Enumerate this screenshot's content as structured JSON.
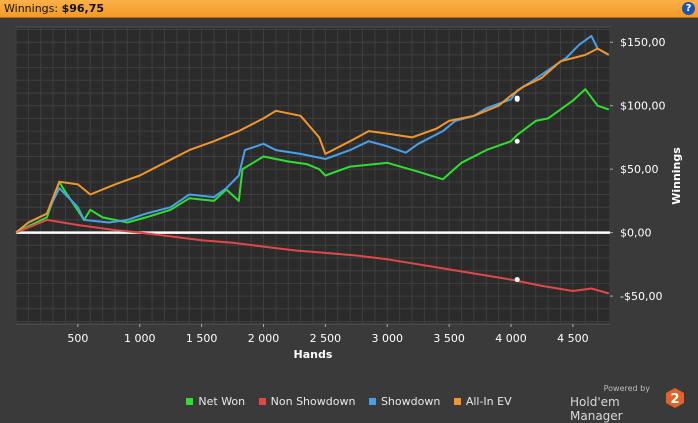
{
  "title_bar": {
    "label": "Winnings:",
    "value": "$96,75",
    "help_icon": "help-icon"
  },
  "brand": {
    "powered_by": "Powered by",
    "name": "Hold'em Manager",
    "version": "2",
    "logo_icon": "hm2-logo-icon"
  },
  "chart_data": {
    "type": "line",
    "xlabel": "Hands",
    "ylabel": "Winnings",
    "xlim": [
      0,
      4800
    ],
    "ylim": [
      -72,
      162
    ],
    "x_ticks": [
      500,
      1000,
      1500,
      2000,
      2500,
      3000,
      3500,
      4000,
      4500
    ],
    "x_tick_labels": [
      "500",
      "1 000",
      "1 500",
      "2 000",
      "2 500",
      "3 000",
      "3 500",
      "4 000",
      "4 500"
    ],
    "y_ticks": [
      -50,
      0,
      50,
      100,
      150
    ],
    "y_tick_labels": [
      "-$50,00",
      "$0,00",
      "$50,00",
      "$100,00",
      "$150,00"
    ],
    "zero_line": true,
    "grid": true,
    "legend_position": "bottom",
    "series": [
      {
        "name": "Net Won",
        "color": "#2ee02e",
        "x": [
          0,
          100,
          250,
          350,
          380,
          550,
          600,
          700,
          900,
          1050,
          1250,
          1400,
          1600,
          1700,
          1800,
          1830,
          2000,
          2200,
          2350,
          2450,
          2500,
          2700,
          3000,
          3250,
          3450,
          3600,
          3800,
          4000,
          4050,
          4200,
          4300,
          4500,
          4600,
          4700,
          4790
        ],
        "y": [
          0,
          5,
          12,
          40,
          35,
          10,
          18,
          12,
          8,
          12,
          18,
          27,
          25,
          34,
          25,
          50,
          60,
          56,
          54,
          50,
          45,
          52,
          55,
          48,
          42,
          55,
          65,
          72,
          77,
          88,
          90,
          104,
          113,
          100,
          97
        ]
      },
      {
        "name": "Non Showdown",
        "color": "#e04848",
        "x": [
          0,
          250,
          500,
          800,
          1000,
          1250,
          1500,
          1750,
          2000,
          2250,
          2500,
          2750,
          3000,
          3250,
          3500,
          3750,
          4000,
          4250,
          4500,
          4650,
          4790
        ],
        "y": [
          0,
          10,
          6,
          2,
          0,
          -3,
          -6,
          -8,
          -11,
          -14,
          -16,
          -18,
          -21,
          -25,
          -29,
          -33,
          -37,
          -42,
          -46,
          -44,
          -48
        ]
      },
      {
        "name": "Showdown",
        "color": "#4aa0e8",
        "x": [
          0,
          100,
          250,
          350,
          400,
          500,
          550,
          750,
          900,
          1050,
          1250,
          1400,
          1600,
          1700,
          1800,
          1850,
          2000,
          2100,
          2300,
          2500,
          2700,
          2850,
          3000,
          3150,
          3250,
          3450,
          3550,
          3700,
          3800,
          4000,
          4050,
          4150,
          4300,
          4450,
          4550,
          4650,
          4700,
          4790
        ],
        "y": [
          0,
          8,
          15,
          35,
          30,
          20,
          10,
          8,
          10,
          15,
          20,
          30,
          28,
          35,
          45,
          65,
          70,
          65,
          62,
          58,
          65,
          72,
          68,
          63,
          70,
          80,
          88,
          92,
          98,
          105,
          112,
          118,
          128,
          138,
          148,
          155,
          145,
          140
        ]
      },
      {
        "name": "All-In EV",
        "color": "#f0962c",
        "x": [
          0,
          100,
          250,
          350,
          500,
          600,
          800,
          1000,
          1200,
          1400,
          1600,
          1800,
          1900,
          2000,
          2100,
          2300,
          2450,
          2500,
          2700,
          2850,
          3000,
          3200,
          3400,
          3500,
          3700,
          3900,
          4000,
          4100,
          4250,
          4400,
          4600,
          4700,
          4790
        ],
        "y": [
          0,
          8,
          15,
          40,
          38,
          30,
          38,
          45,
          55,
          65,
          72,
          80,
          85,
          90,
          96,
          92,
          75,
          62,
          72,
          80,
          78,
          75,
          82,
          88,
          92,
          100,
          108,
          115,
          122,
          135,
          140,
          145,
          140
        ]
      }
    ],
    "markers": [
      {
        "series": "Net Won",
        "x": 4050,
        "y": 72
      },
      {
        "series": "Non Showdown",
        "x": 4050,
        "y": -37
      },
      {
        "series": "Showdown",
        "x": 4050,
        "y": 106
      },
      {
        "series": "All-In EV",
        "x": 4050,
        "y": 105
      }
    ]
  }
}
